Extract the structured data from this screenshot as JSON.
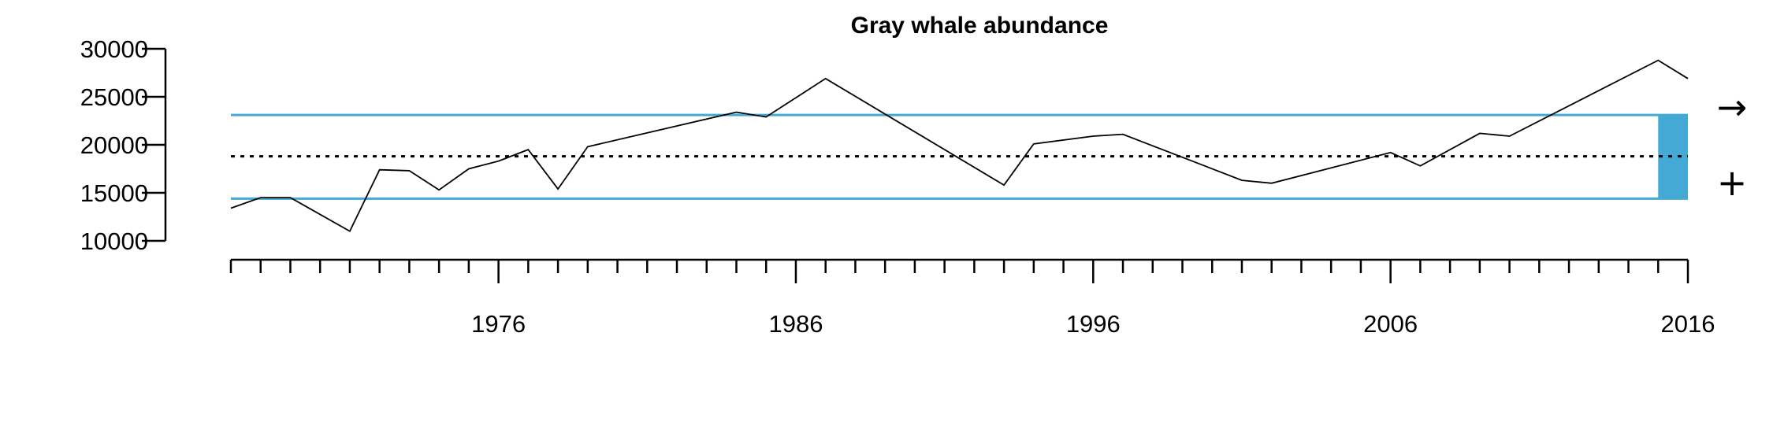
{
  "chart_data": {
    "type": "line",
    "title": "Gray whale abundance",
    "xlabel": "",
    "ylabel": "",
    "xlim": [
      1967,
      2016
    ],
    "ylim": [
      10000,
      30000
    ],
    "x_ticks_labeled": [
      1976,
      1986,
      1996,
      2006,
      2016
    ],
    "y_ticks": [
      10000,
      15000,
      20000,
      25000,
      30000
    ],
    "y_tick_labels": [
      "10000",
      "15000",
      "20000",
      "25000",
      "30000"
    ],
    "x_tick_labels": [
      "1976",
      "1986",
      "1996",
      "2006",
      "2016"
    ],
    "series": [
      {
        "x": [
          1967,
          1968,
          1969,
          1971,
          1972,
          1973,
          1974,
          1975,
          1976,
          1977,
          1978,
          1979,
          1984,
          1985,
          1987,
          1993,
          1994,
          1996,
          1997,
          2001,
          2002,
          2006,
          2007,
          2009,
          2010,
          2015,
          2016
        ],
        "y": [
          13400,
          14500,
          14500,
          11000,
          17400,
          17300,
          15300,
          17500,
          18300,
          19500,
          15400,
          19800,
          23400,
          22900,
          26900,
          15800,
          20100,
          20900,
          21100,
          16300,
          16000,
          19200,
          17800,
          21200,
          20900,
          28800,
          26900
        ]
      }
    ],
    "reference_lines": {
      "mean": 18800,
      "upper": 23100,
      "lower": 14400
    },
    "highlight_bar": {
      "x_start": 2015,
      "x_end": 2016,
      "y_low": 14400,
      "y_high": 23100
    },
    "trend_symbol": "→",
    "status_symbol": "+",
    "colors": {
      "band": "#44AAD5",
      "line": "#000000"
    },
    "grid": false
  }
}
